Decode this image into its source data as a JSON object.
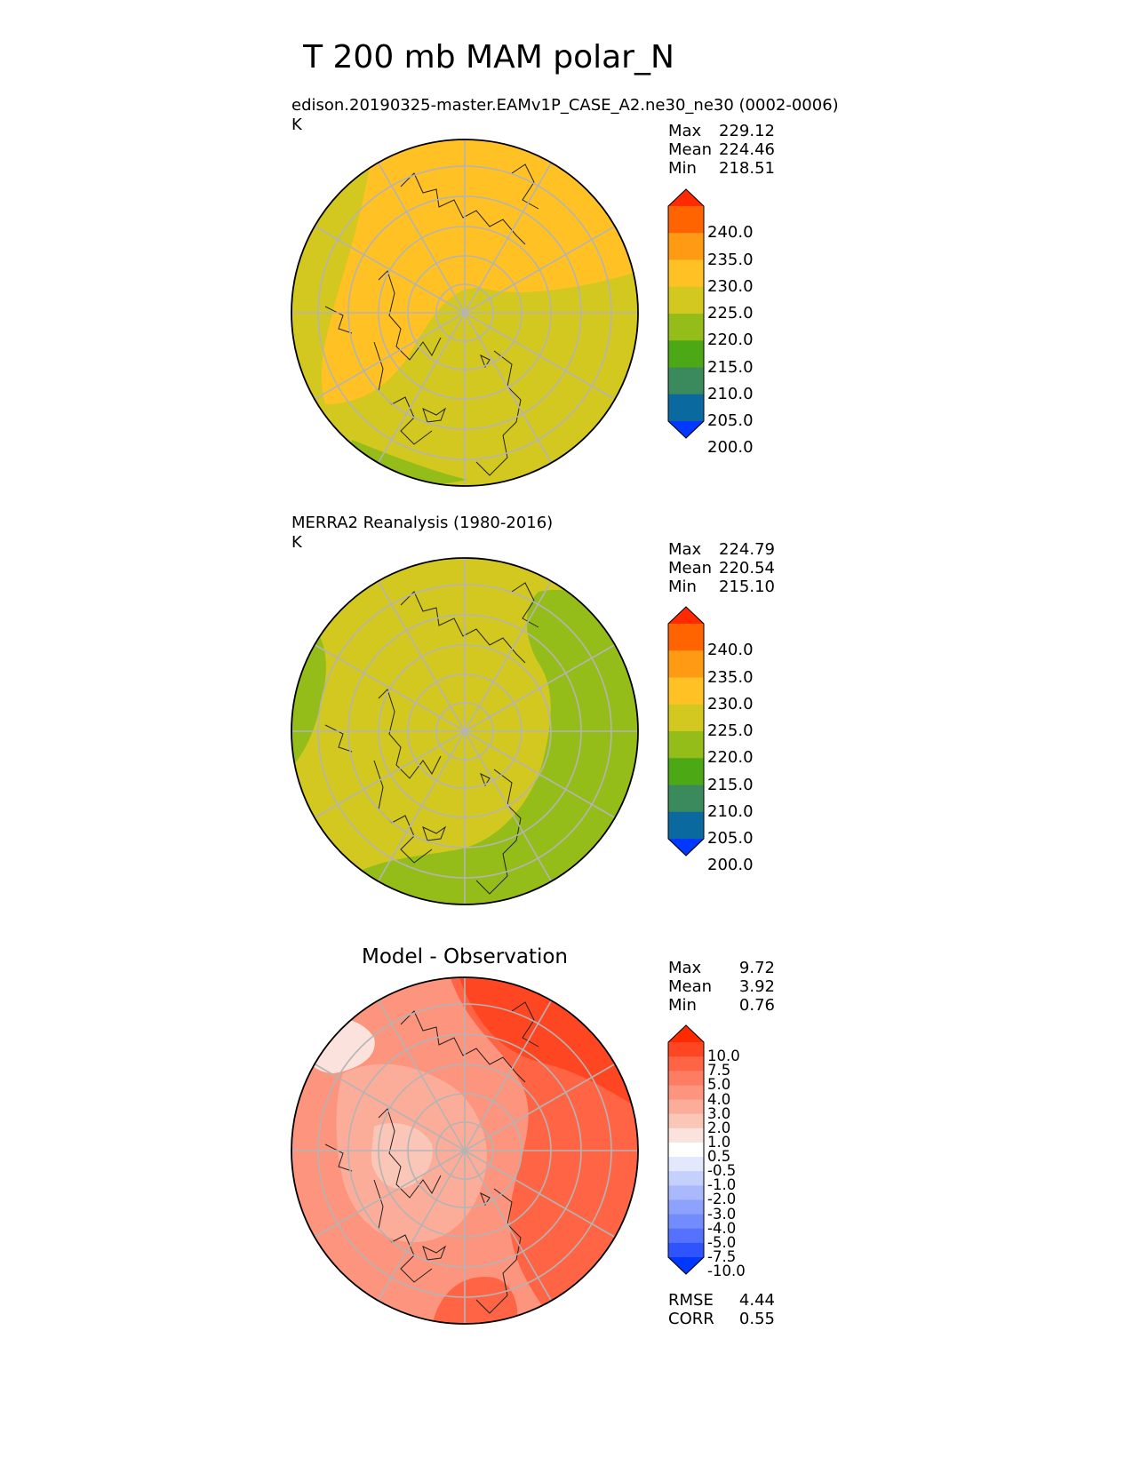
{
  "title": "T 200 mb MAM polar_N",
  "panels": [
    {
      "subtitle": "edison.20190325-master.EAMv1P_CASE_A2.ne30_ne30 (0002-0006)",
      "units": "K",
      "stats": [
        {
          "label": "Max",
          "value": "229.12"
        },
        {
          "label": "Mean",
          "value": "224.46"
        },
        {
          "label": "Min",
          "value": "218.51"
        }
      ]
    },
    {
      "subtitle": "MERRA2 Reanalysis (1980-2016)",
      "units": "K",
      "stats": [
        {
          "label": "Max",
          "value": "224.79"
        },
        {
          "label": "Mean",
          "value": "220.54"
        },
        {
          "label": "Min",
          "value": "215.10"
        }
      ]
    },
    {
      "subtitle": "Model - Observation",
      "units": "",
      "stats": [
        {
          "label": "Max",
          "value": "9.72"
        },
        {
          "label": "Mean",
          "value": "3.92"
        },
        {
          "label": "Min",
          "value": "0.76"
        }
      ],
      "metrics": [
        {
          "label": "RMSE",
          "value": "4.44"
        },
        {
          "label": "CORR",
          "value": "0.55"
        }
      ]
    }
  ],
  "colorbars": {
    "temperature": {
      "ticks": [
        "240.0",
        "235.0",
        "230.0",
        "225.0",
        "220.0",
        "215.0",
        "210.0",
        "205.0",
        "200.0"
      ],
      "colors": [
        "#ff2a00",
        "#ff6400",
        "#ff9a14",
        "#ffc124",
        "#d3c820",
        "#95bd19",
        "#4ca814",
        "#3b8a5e",
        "#0a6aa0",
        "#0038ff"
      ]
    },
    "difference": {
      "ticks": [
        "10.0",
        "7.5",
        "5.0",
        "4.0",
        "3.0",
        "2.0",
        "1.0",
        "0.5",
        "-0.5",
        "-1.0",
        "-2.0",
        "-3.0",
        "-4.0",
        "-5.0",
        "-7.5",
        "-10.0"
      ],
      "colors": [
        "#ff2a00",
        "#ff4622",
        "#ff6445",
        "#fd7c62",
        "#fc947e",
        "#fbad9a",
        "#fac6b7",
        "#fbe2dc",
        "#ffffff",
        "#e2e8fe",
        "#c6d0fd",
        "#aab9fd",
        "#8ea2fd",
        "#728bfd",
        "#5472fe",
        "#2e53ff",
        "#0038ff"
      ]
    }
  },
  "chart_data": [
    {
      "type": "heatmap",
      "projection": "north-polar-stereographic",
      "title": "edison.20190325-master.EAMv1P_CASE_A2.ne30_ne30 (0002-0006)",
      "units": "K",
      "levels": [
        200,
        205,
        210,
        215,
        220,
        225,
        230,
        235,
        240
      ],
      "max": 229.12,
      "mean": 224.46,
      "min": 218.51
    },
    {
      "type": "heatmap",
      "projection": "north-polar-stereographic",
      "title": "MERRA2 Reanalysis (1980-2016)",
      "units": "K",
      "levels": [
        200,
        205,
        210,
        215,
        220,
        225,
        230,
        235,
        240
      ],
      "max": 224.79,
      "mean": 220.54,
      "min": 215.1
    },
    {
      "type": "heatmap",
      "projection": "north-polar-stereographic",
      "title": "Model - Observation",
      "levels": [
        -10,
        -7.5,
        -5,
        -4,
        -3,
        -2,
        -1,
        -0.5,
        0.5,
        1,
        2,
        3,
        4,
        5,
        7.5,
        10
      ],
      "max": 9.72,
      "mean": 3.92,
      "min": 0.76,
      "rmse": 4.44,
      "corr": 0.55
    }
  ]
}
